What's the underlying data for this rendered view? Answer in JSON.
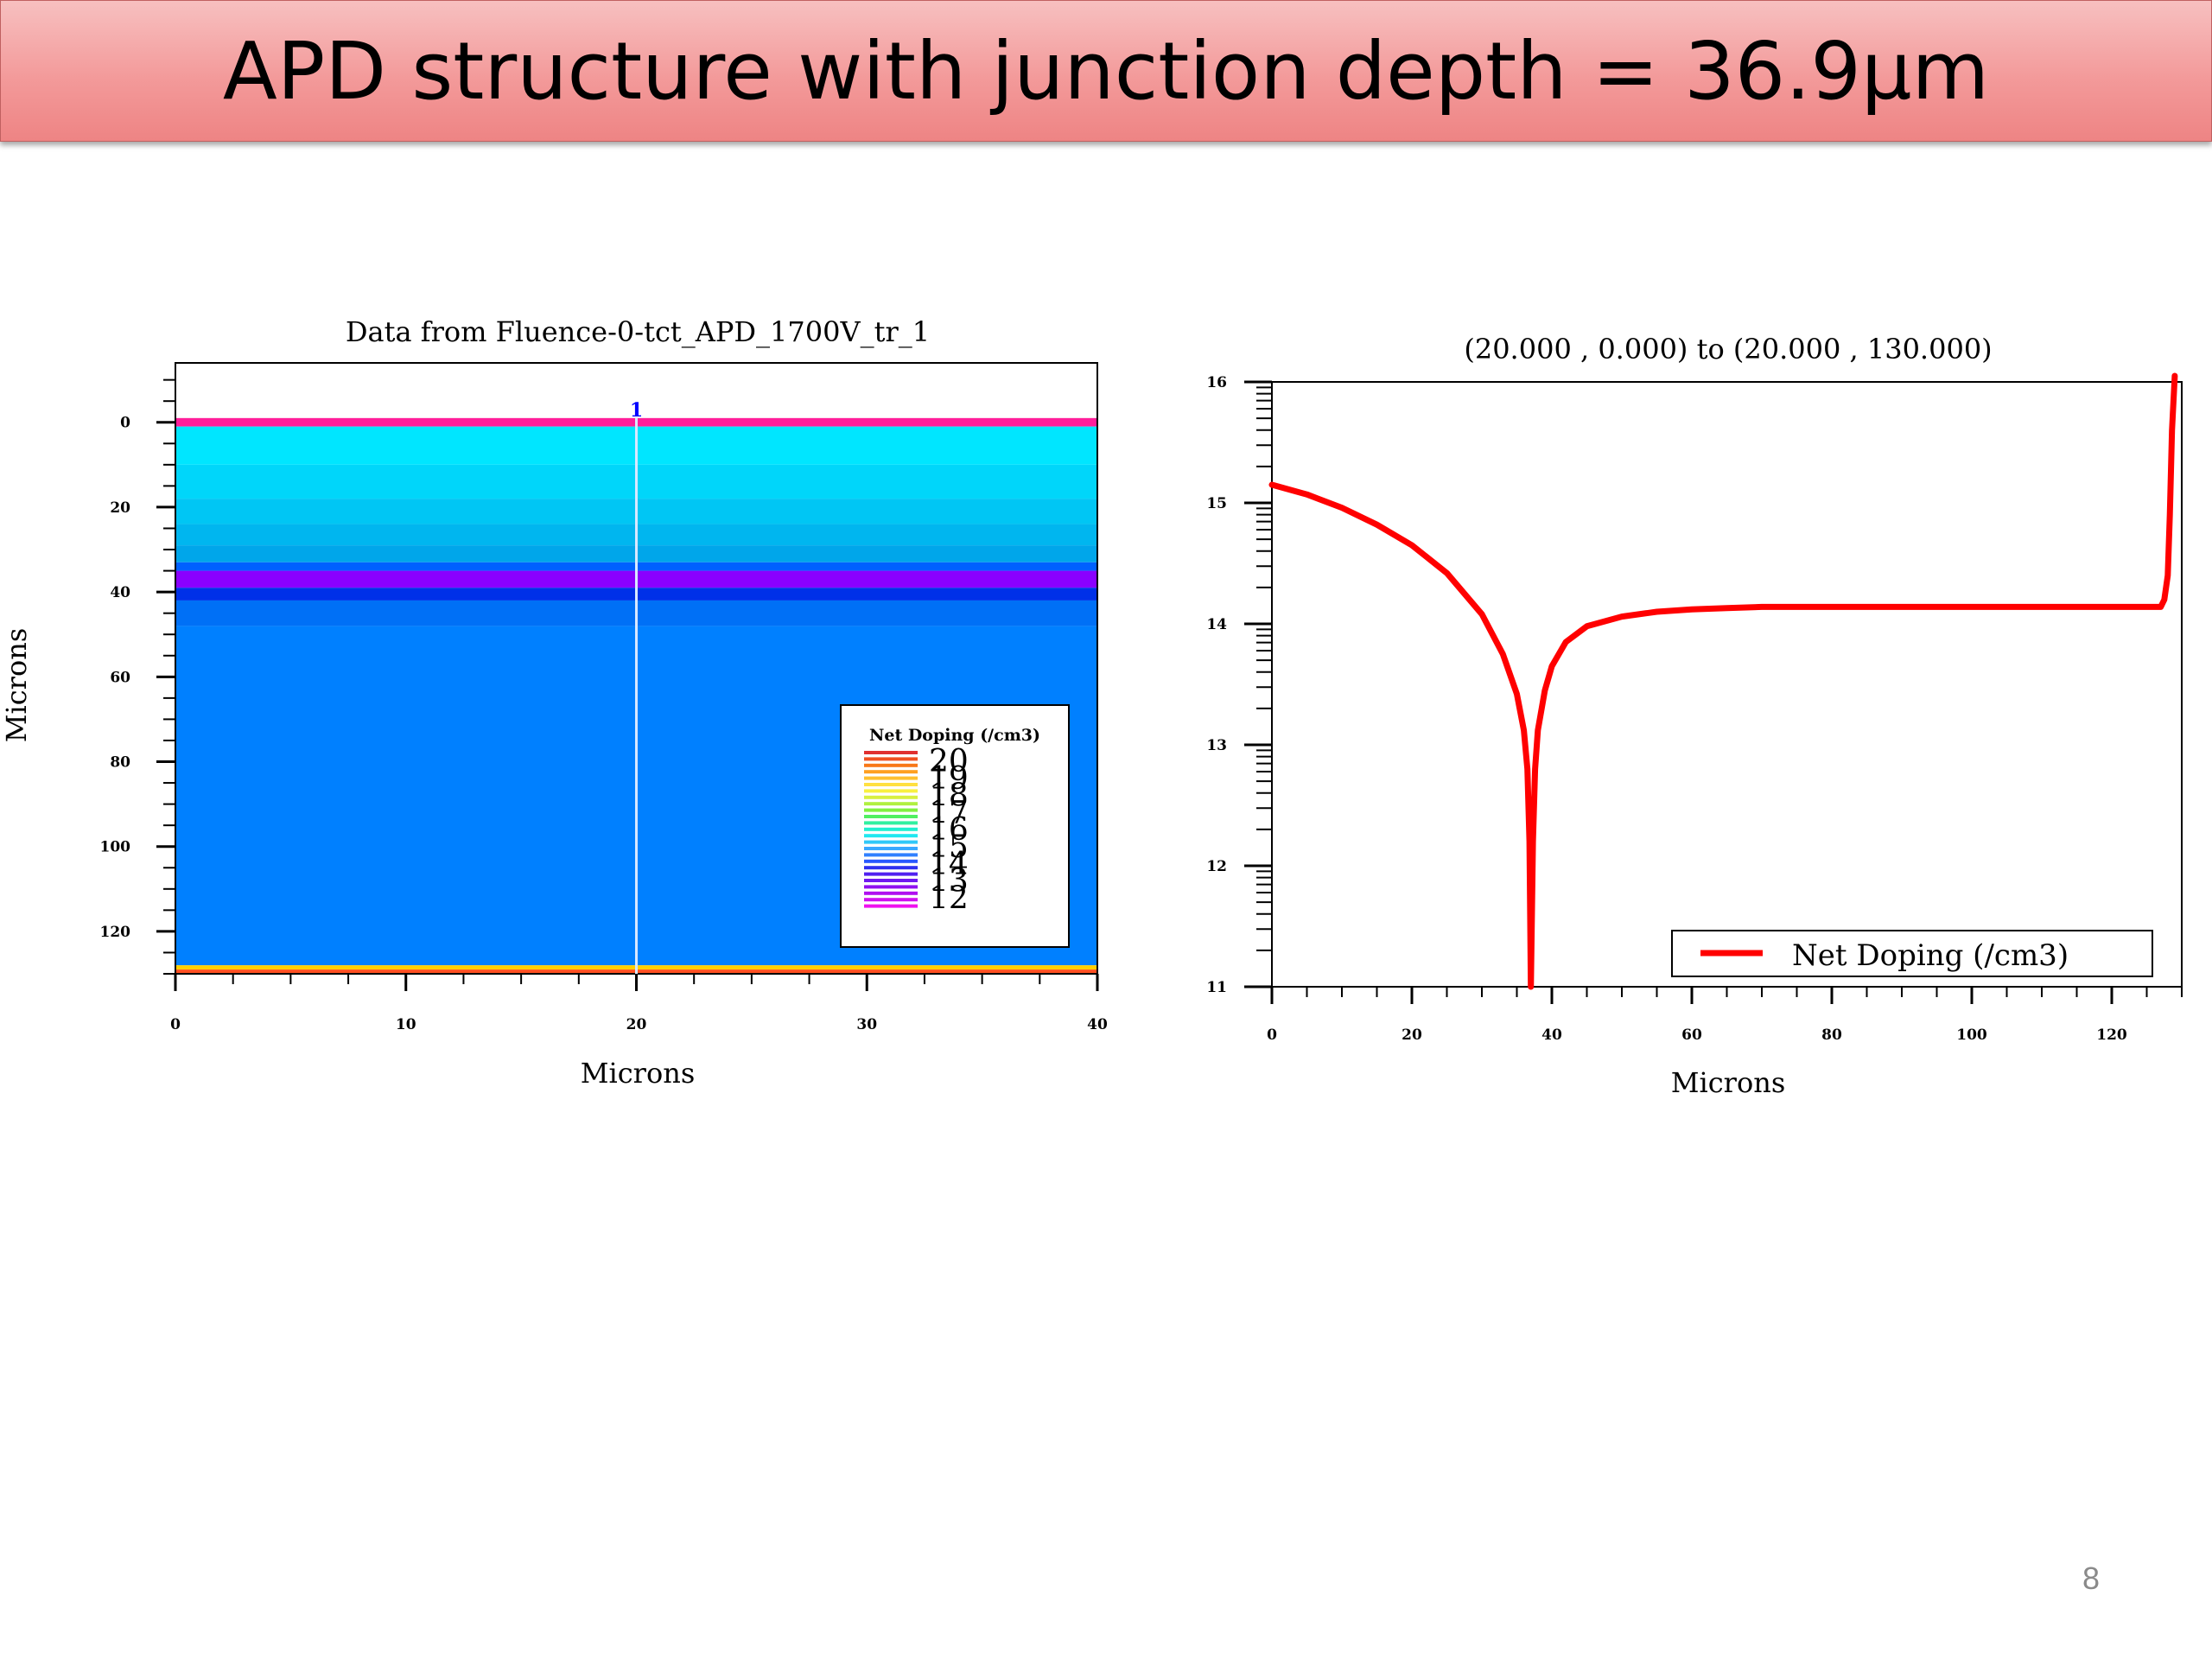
{
  "slide": {
    "title": "APD structure with junction depth = 36.9µm",
    "page_number": "8"
  },
  "chart_data": [
    {
      "type": "heatmap",
      "title": "Data from Fluence-0-tct_APD_1700V_tr_1",
      "xlabel": "Microns",
      "ylabel": "Microns",
      "xlim": [
        0,
        40
      ],
      "ylim": [
        130,
        -14
      ],
      "x_ticks": [
        0,
        10,
        20,
        30,
        40
      ],
      "y_ticks": [
        0,
        20,
        40,
        60,
        80,
        100,
        120
      ],
      "cut_line": {
        "x": 20,
        "label": "1"
      },
      "legend": {
        "title": "Net Doping (/cm3)",
        "position": "lower-right",
        "entries": [
          "20",
          "19",
          "18",
          "17",
          "16",
          "15",
          "14",
          "13",
          "12"
        ]
      },
      "bands": [
        {
          "y0": -1,
          "y1": 1,
          "color": "#ff1e9a"
        },
        {
          "y0": 1,
          "y1": 10,
          "color": "#00e6ff"
        },
        {
          "y0": 10,
          "y1": 18,
          "color": "#00d6fa"
        },
        {
          "y0": 18,
          "y1": 24,
          "color": "#00c6f4"
        },
        {
          "y0": 24,
          "y1": 29,
          "color": "#00b6ef"
        },
        {
          "y0": 29,
          "y1": 33,
          "color": "#00a6ea"
        },
        {
          "y0": 33,
          "y1": 35,
          "color": "#0060ff"
        },
        {
          "y0": 35,
          "y1": 39,
          "color": "#8a00ff"
        },
        {
          "y0": 39,
          "y1": 42,
          "color": "#0030e8"
        },
        {
          "y0": 42,
          "y1": 48,
          "color": "#0070f6"
        },
        {
          "y0": 48,
          "y1": 128,
          "color": "#0080ff"
        },
        {
          "y0": 128,
          "y1": 129,
          "color": "#ffd000"
        },
        {
          "y0": 129,
          "y1": 130,
          "color": "#ff5020"
        }
      ]
    },
    {
      "type": "line",
      "title": "(20.000 , 0.000) to (20.000 , 130.000)",
      "xlabel": "Microns",
      "ylabel": "",
      "xlim": [
        0,
        130
      ],
      "ylim": [
        11,
        16
      ],
      "x_ticks": [
        0,
        20,
        40,
        60,
        80,
        100,
        120
      ],
      "y_ticks": [
        11,
        12,
        13,
        14,
        15,
        16
      ],
      "legend": {
        "position": "bottom-right"
      },
      "series": [
        {
          "name": "Net Doping (/cm3)",
          "color": "#ff0000",
          "x": [
            0,
            5,
            10,
            15,
            20,
            25,
            30,
            33,
            35,
            36,
            36.5,
            36.8,
            37,
            37.3,
            37.6,
            38,
            39,
            40,
            42,
            45,
            50,
            55,
            60,
            65,
            70,
            80,
            90,
            100,
            110,
            120,
            127,
            127.5,
            128,
            128.3,
            128.6,
            129
          ],
          "y": [
            15.15,
            15.07,
            14.96,
            14.82,
            14.65,
            14.42,
            14.08,
            13.75,
            13.42,
            13.12,
            12.8,
            12.2,
            11.0,
            12.2,
            12.8,
            13.12,
            13.45,
            13.65,
            13.85,
            13.98,
            14.06,
            14.1,
            14.12,
            14.13,
            14.14,
            14.14,
            14.14,
            14.14,
            14.14,
            14.14,
            14.14,
            14.2,
            14.4,
            14.9,
            15.6,
            16.05
          ]
        }
      ]
    }
  ]
}
